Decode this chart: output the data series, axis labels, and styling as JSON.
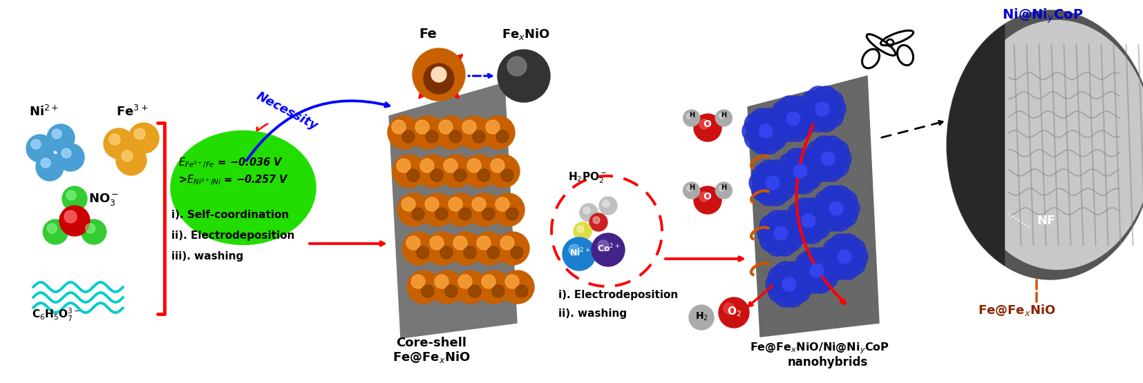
{
  "bg_color": "#ffffff",
  "fig_width": 16.54,
  "fig_height": 5.55,
  "dpi": 100,
  "section1": {
    "ni2plus_label": "Ni$^{2+}$",
    "fe3plus_label": "Fe$^{3+}$",
    "no3minus_label": "NO$_3^-$",
    "citrate_label": "C$_6$H$_5$O$_7^{3-}$",
    "ni_color": "#4a9fd4",
    "fe_color": "#e8a020",
    "no3_red": "#cc0000",
    "no3_green": "#33cc33",
    "citrate_color": "#00cccc"
  },
  "green_ellipse": {
    "text_line1": "$\\mathit{E}_{Fe^{3+}/Fe}$ = −0.036 V",
    "text_line2": ">$\\mathit{E}_{Ni^{2+}/Ni}$ = −0.257 V",
    "color": "#22dd00"
  },
  "steps_left": {
    "lines": [
      "i). Self-coordination",
      "ii). Electrodeposition",
      "iii). washing"
    ]
  },
  "necessity_label": "Necessity",
  "core_shell_label_line1": "Core-shell",
  "core_shell_label_line2": "Fe@Fe$_x$NiO",
  "middle_steps": {
    "h2po2_label": "H$_2$PO$_2^-$",
    "ni2plus_label2": "Ni$^{2+}$",
    "co2plus_label": "Co$^{2+}$",
    "steps": [
      "i). Electrodeposition",
      "ii). washing"
    ]
  },
  "nanohybrids_label_line1": "Fe@Fe$_x$NiO/Ni@Ni$_y$CoP",
  "nanohybrids_label_line2": "nanohybrids",
  "right_labels": {
    "top_label": "Ni@Ni$_y$CoP",
    "top_color": "#0000cc",
    "bottom_label": "Fe@Fe$_x$NiO",
    "bottom_color": "#8B2500",
    "nf_label": "NF",
    "nf_color": "#ffffff"
  }
}
